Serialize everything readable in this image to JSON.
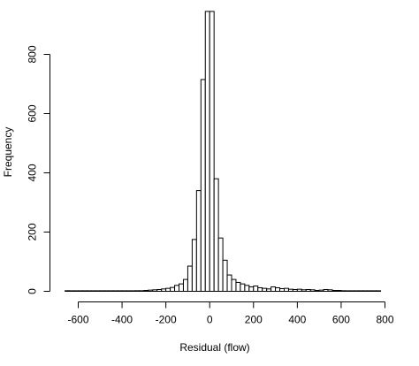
{
  "chart_data": {
    "type": "bar",
    "subtype": "histogram",
    "title": "",
    "xlabel": "Residual (flow)",
    "ylabel": "Frequency",
    "xlim": [
      -660,
      780
    ],
    "ylim": [
      0,
      950
    ],
    "xticks": [
      -600,
      -400,
      -200,
      0,
      200,
      400,
      600,
      800
    ],
    "yticks": [
      0,
      200,
      400,
      600,
      800
    ],
    "bin_width": 20,
    "bins": [
      {
        "x0": -660,
        "x1": -640,
        "count": 2
      },
      {
        "x0": -640,
        "x1": -620,
        "count": 1
      },
      {
        "x0": -620,
        "x1": -600,
        "count": 0
      },
      {
        "x0": -600,
        "x1": -580,
        "count": 1
      },
      {
        "x0": -580,
        "x1": -560,
        "count": 0
      },
      {
        "x0": -560,
        "x1": -540,
        "count": 1
      },
      {
        "x0": -540,
        "x1": -520,
        "count": 0
      },
      {
        "x0": -520,
        "x1": -500,
        "count": 1
      },
      {
        "x0": -500,
        "x1": -480,
        "count": 1
      },
      {
        "x0": -480,
        "x1": -460,
        "count": 0
      },
      {
        "x0": -460,
        "x1": -440,
        "count": 1
      },
      {
        "x0": -440,
        "x1": -420,
        "count": 1
      },
      {
        "x0": -420,
        "x1": -400,
        "count": 0
      },
      {
        "x0": -400,
        "x1": -380,
        "count": 1
      },
      {
        "x0": -380,
        "x1": -360,
        "count": 0
      },
      {
        "x0": -360,
        "x1": -340,
        "count": 1
      },
      {
        "x0": -340,
        "x1": -320,
        "count": 2
      },
      {
        "x0": -320,
        "x1": -300,
        "count": 2
      },
      {
        "x0": -300,
        "x1": -280,
        "count": 3
      },
      {
        "x0": -280,
        "x1": -260,
        "count": 4
      },
      {
        "x0": -260,
        "x1": -240,
        "count": 5
      },
      {
        "x0": -240,
        "x1": -220,
        "count": 6
      },
      {
        "x0": -220,
        "x1": -200,
        "count": 8
      },
      {
        "x0": -200,
        "x1": -180,
        "count": 10
      },
      {
        "x0": -180,
        "x1": -160,
        "count": 13
      },
      {
        "x0": -160,
        "x1": -140,
        "count": 20
      },
      {
        "x0": -140,
        "x1": -120,
        "count": 25
      },
      {
        "x0": -120,
        "x1": -100,
        "count": 40
      },
      {
        "x0": -100,
        "x1": -80,
        "count": 85
      },
      {
        "x0": -80,
        "x1": -60,
        "count": 175
      },
      {
        "x0": -60,
        "x1": -40,
        "count": 340
      },
      {
        "x0": -40,
        "x1": -20,
        "count": 715
      },
      {
        "x0": -20,
        "x1": 0,
        "count": 945
      },
      {
        "x0": 0,
        "x1": 20,
        "count": 945
      },
      {
        "x0": 20,
        "x1": 40,
        "count": 380
      },
      {
        "x0": 40,
        "x1": 60,
        "count": 180
      },
      {
        "x0": 60,
        "x1": 80,
        "count": 105
      },
      {
        "x0": 80,
        "x1": 100,
        "count": 55
      },
      {
        "x0": 100,
        "x1": 120,
        "count": 40
      },
      {
        "x0": 120,
        "x1": 140,
        "count": 30
      },
      {
        "x0": 140,
        "x1": 160,
        "count": 25
      },
      {
        "x0": 160,
        "x1": 180,
        "count": 20
      },
      {
        "x0": 180,
        "x1": 200,
        "count": 15
      },
      {
        "x0": 200,
        "x1": 220,
        "count": 18
      },
      {
        "x0": 220,
        "x1": 240,
        "count": 12
      },
      {
        "x0": 240,
        "x1": 260,
        "count": 10
      },
      {
        "x0": 260,
        "x1": 280,
        "count": 8
      },
      {
        "x0": 280,
        "x1": 300,
        "count": 15
      },
      {
        "x0": 300,
        "x1": 320,
        "count": 12
      },
      {
        "x0": 320,
        "x1": 340,
        "count": 9
      },
      {
        "x0": 340,
        "x1": 360,
        "count": 10
      },
      {
        "x0": 360,
        "x1": 380,
        "count": 7
      },
      {
        "x0": 380,
        "x1": 400,
        "count": 6
      },
      {
        "x0": 400,
        "x1": 420,
        "count": 7
      },
      {
        "x0": 420,
        "x1": 440,
        "count": 5
      },
      {
        "x0": 440,
        "x1": 460,
        "count": 6
      },
      {
        "x0": 460,
        "x1": 480,
        "count": 5
      },
      {
        "x0": 480,
        "x1": 500,
        "count": 3
      },
      {
        "x0": 500,
        "x1": 520,
        "count": 4
      },
      {
        "x0": 520,
        "x1": 540,
        "count": 6
      },
      {
        "x0": 540,
        "x1": 560,
        "count": 5
      },
      {
        "x0": 560,
        "x1": 580,
        "count": 3
      },
      {
        "x0": 580,
        "x1": 600,
        "count": 3
      },
      {
        "x0": 600,
        "x1": 620,
        "count": 2
      },
      {
        "x0": 620,
        "x1": 640,
        "count": 1
      },
      {
        "x0": 640,
        "x1": 660,
        "count": 0
      },
      {
        "x0": 660,
        "x1": 680,
        "count": 0
      },
      {
        "x0": 680,
        "x1": 700,
        "count": 0
      },
      {
        "x0": 700,
        "x1": 720,
        "count": 1
      },
      {
        "x0": 720,
        "x1": 740,
        "count": 1
      },
      {
        "x0": 740,
        "x1": 760,
        "count": 1
      },
      {
        "x0": 760,
        "x1": 780,
        "count": 1
      }
    ],
    "bar_fill": "#ffffff",
    "bar_stroke": "#000000",
    "grid": false,
    "legend": "none"
  }
}
